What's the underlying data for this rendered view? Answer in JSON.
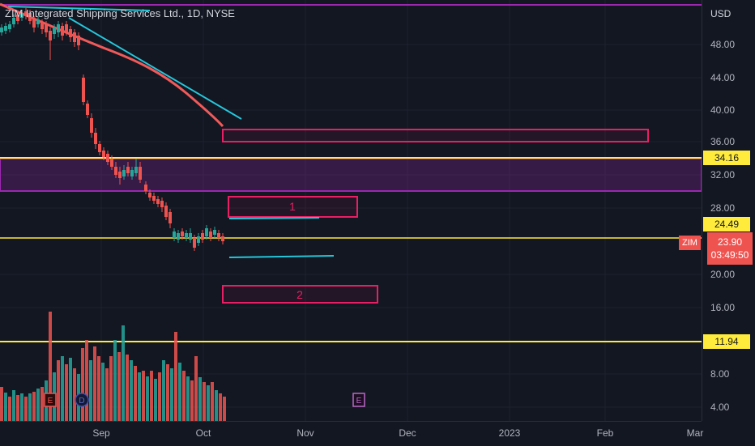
{
  "chart": {
    "title": "ZIM Integrated Shipping Services Ltd., 1D, NYSE",
    "currency": "USD",
    "ticker": "ZIM",
    "last_price": "23.90",
    "countdown": "03:49:50"
  },
  "colors": {
    "background": "#131722",
    "up": "#26a69a",
    "down": "#ef5350",
    "level_line": "#ffeb3b",
    "zone": "#9c27b0",
    "box_border": "#e91e63",
    "trend_line": "#26c6da",
    "ma_line": "#f05a5a"
  },
  "price_axis_ticks": [
    "48.00",
    "44.00",
    "40.00",
    "36.00",
    "32.00",
    "28.00",
    "20.00",
    "16.00",
    "8.00",
    "4.00"
  ],
  "time_axis_labels": [
    "Sep",
    "Oct",
    "Nov",
    "Dec",
    "2023",
    "Feb",
    "Mar"
  ],
  "horizontal_levels": [
    "34.16",
    "24.49",
    "11.94"
  ],
  "boxes": [
    "1",
    "2"
  ],
  "events": [
    {
      "letter": "E",
      "icon": "earnings-marker-icon"
    },
    {
      "letter": "D",
      "icon": "dividend-marker-icon"
    },
    {
      "letter": "E",
      "icon": "earnings-marker-icon"
    }
  ]
}
